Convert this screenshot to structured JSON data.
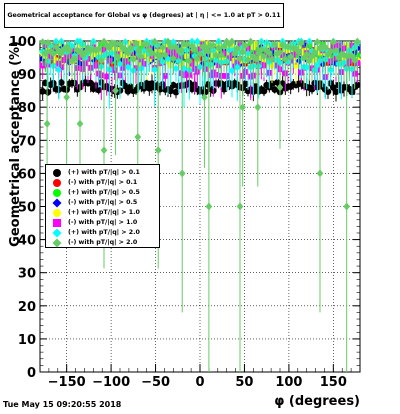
{
  "title": "Geometrical acceptance for Global vs φ (degrees) at | η | <= 1.0 at pT > 0.11",
  "timestamp": "Tue May 15 09:20:55 2018",
  "chart_data": {
    "type": "scatter",
    "xlabel": "φ (degrees)",
    "ylabel": "Geometrical acceptance (%)",
    "xlim": [
      -180,
      180
    ],
    "ylim": [
      0,
      100
    ],
    "xticks": [
      -150,
      -100,
      -50,
      0,
      50,
      100,
      150
    ],
    "xtick_labels": [
      "−150",
      "−100",
      "−50",
      "0",
      "50",
      "100",
      "150"
    ],
    "yticks": [
      0,
      10,
      20,
      30,
      40,
      50,
      60,
      70,
      80,
      90,
      100
    ],
    "grid": true,
    "legend_position": "left-middle",
    "series": [
      {
        "name": "(+) with pT/|q| > 0.1",
        "color": "#000000",
        "marker": "circle",
        "mean": 86,
        "spread": 1.5,
        "err": 2
      },
      {
        "name": "(-) with pT/|q| > 0.1",
        "color": "#ff0000",
        "marker": "circle",
        "mean": 95.5,
        "spread": 2.5,
        "err": 3
      },
      {
        "name": "(+) with pT/|q| > 0.5",
        "color": "#00ff00",
        "marker": "circle",
        "mean": 96.5,
        "spread": 2.5,
        "err": 3
      },
      {
        "name": "(-) with pT/|q| > 0.5",
        "color": "#0000ff",
        "marker": "diamond",
        "mean": 96,
        "spread": 3,
        "err": 3
      },
      {
        "name": "(+) with pT/|q| > 1.0",
        "color": "#ffff00",
        "marker": "circle",
        "mean": 96,
        "spread": 3.5,
        "err": 4
      },
      {
        "name": "(-) with pT/|q| > 1.0",
        "color": "#ff00ff",
        "marker": "square",
        "mean": 94,
        "spread": 5,
        "err": 5
      },
      {
        "name": "(+) with pT/|q| > 2.0",
        "color": "#00ffff",
        "marker": "diamond",
        "mean": 96,
        "spread": 5,
        "err": 8
      },
      {
        "name": "(-) with pT/|q| > 2.0",
        "color": "#66cc66",
        "marker": "diamond",
        "mean": 97,
        "spread": 3,
        "err": 6,
        "outliers": [
          [
            -172,
            75
          ],
          [
            -135,
            75
          ],
          [
            -108,
            67
          ],
          [
            -70,
            71
          ],
          [
            -47,
            67
          ],
          [
            -20,
            60
          ],
          [
            10,
            50
          ],
          [
            45,
            50
          ],
          [
            48,
            80
          ],
          [
            65,
            80
          ],
          [
            135,
            60
          ],
          [
            165,
            50
          ],
          [
            -150,
            83
          ],
          [
            -95,
            85
          ],
          [
            5,
            83
          ],
          [
            90,
            86
          ]
        ]
      }
    ]
  }
}
